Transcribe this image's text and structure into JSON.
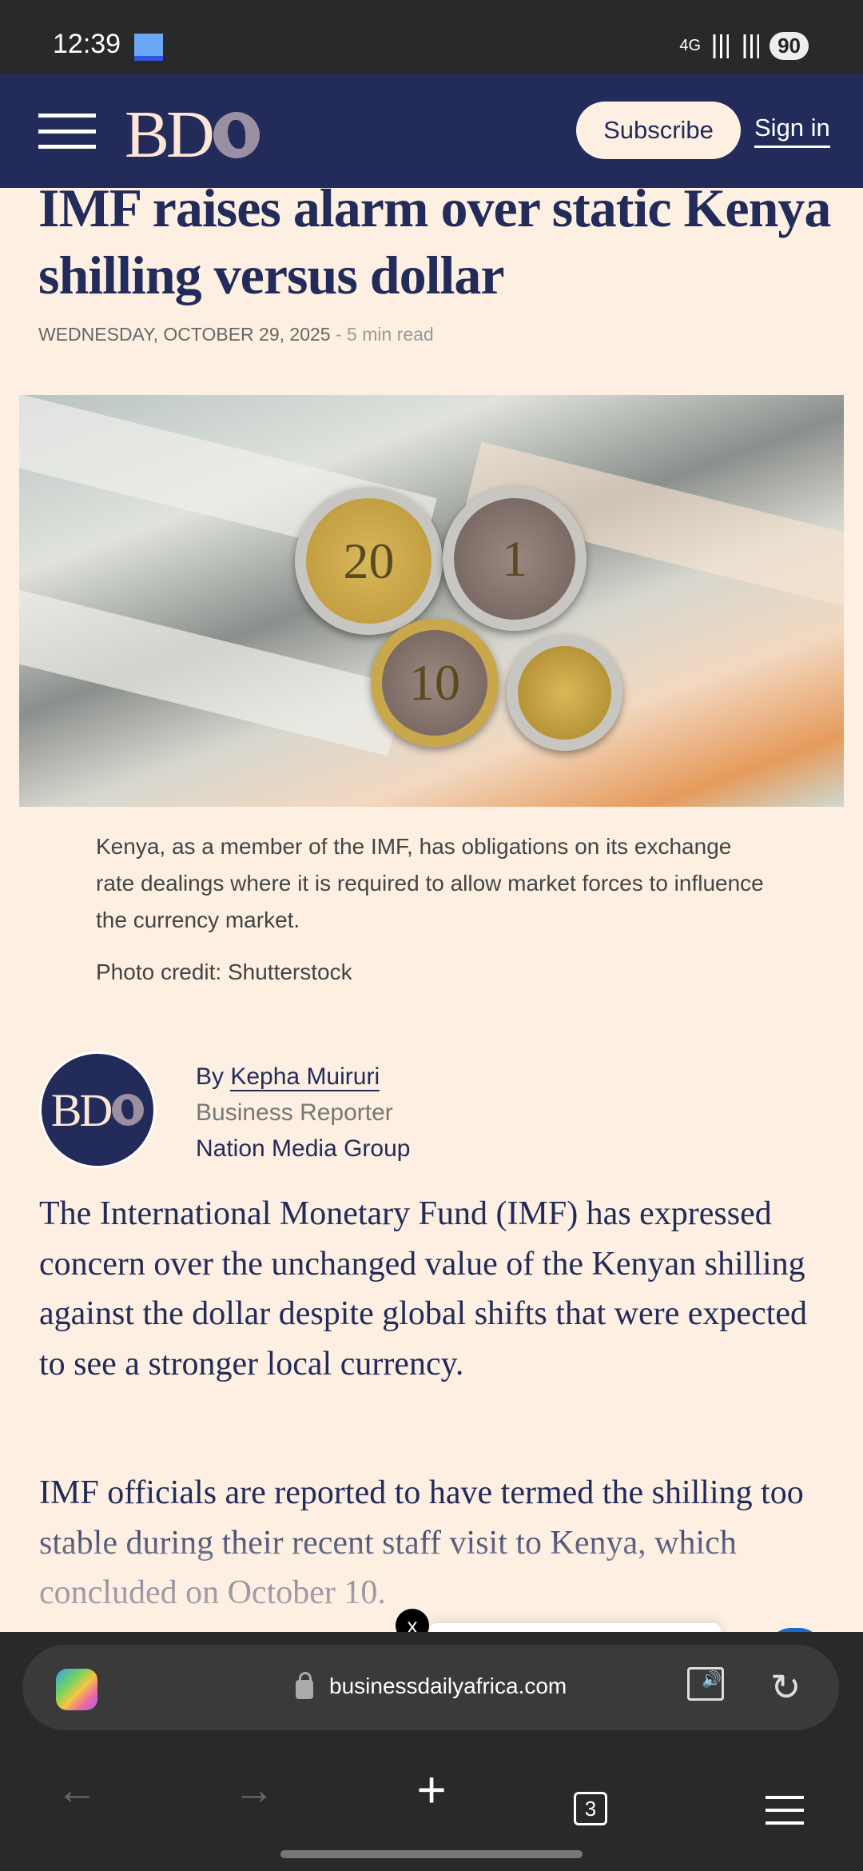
{
  "status_bar": {
    "time": "12:39",
    "signal": "4G",
    "battery": "90"
  },
  "header": {
    "logo": "BD",
    "subscribe_label": "Subscribe",
    "signin_label": "Sign in"
  },
  "article": {
    "title": "IMF raises alarm over static Kenya shilling versus dollar",
    "date": "WEDNESDAY, OCTOBER 29, 2025",
    "read_time": "- 5 min read",
    "image": {
      "coins": [
        "20",
        "1",
        "10",
        ""
      ]
    },
    "caption": "Kenya, as a member of the IMF, has obligations on its exchange rate dealings where it is required to allow market forces to influence the currency market.",
    "photo_credit": "Photo credit: Shutterstock",
    "author": {
      "by": "By ",
      "name": "Kepha Muiruri",
      "role": "Business Reporter",
      "org": "Nation Media Group",
      "avatar_logo": "BD"
    },
    "paragraphs": [
      "The International Monetary Fund (IMF) has expressed concern over the unchanged value of the Kenyan shilling against the dollar despite global shifts that were expected to see a stronger local currency.",
      "IMF officials are reported to have termed the shilling too stable during their recent staff visit to Kenya, which concluded on October 10."
    ]
  },
  "popup": {
    "close_label": "x"
  },
  "browser": {
    "url": "businessdailyafrica.com",
    "tab_count": "3",
    "brand_colors": {
      "header": "#222b59",
      "page": "#fdf0e3"
    }
  }
}
